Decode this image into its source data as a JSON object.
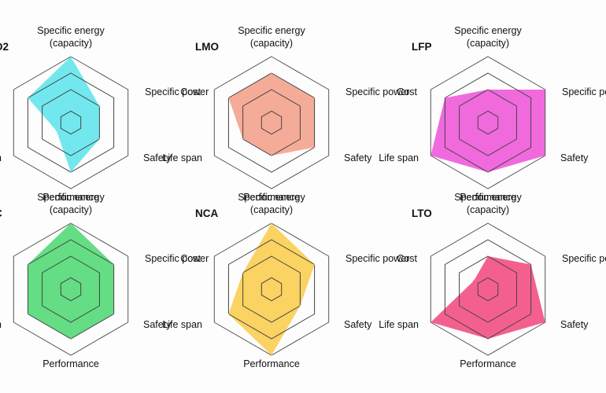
{
  "axes": [
    "Specific energy (capacity)",
    "Specific power",
    "Safety",
    "Performance",
    "Life span",
    "Cost"
  ],
  "chart_data": [
    {
      "type": "radar",
      "title": "LCO",
      "title_visible": "O2",
      "labels": {
        "energy_1": "Specific energy",
        "energy_2": "(capacity)",
        "power": "Specific power",
        "safety": "Safety",
        "performance": "Performance",
        "lifespan": "span",
        "cost": "ost"
      },
      "scale_levels": 4,
      "series": [
        {
          "values": [
            4,
            2,
            2,
            3,
            1,
            3
          ],
          "color": "#5ee5ec"
        }
      ]
    },
    {
      "type": "radar",
      "title": "LMO",
      "labels": {
        "energy_1": "Specific energy",
        "energy_2": "(capacity)",
        "power": "Specific power",
        "safety": "Safety",
        "performance": "Performance",
        "lifespan": "Life span",
        "cost": "Cost"
      },
      "scale_levels": 4,
      "series": [
        {
          "values": [
            3,
            3,
            3,
            2,
            2,
            3
          ],
          "color": "#f2a08a"
        }
      ]
    },
    {
      "type": "radar",
      "title": "LFP",
      "labels": {
        "energy_1": "Specific energy",
        "energy_2": "(capacity)",
        "power": "Specific powe",
        "safety": "Safety",
        "performance": "Performance",
        "lifespan": "Life span",
        "cost": "Cost"
      },
      "scale_levels": 4,
      "series": [
        {
          "values": [
            2,
            4,
            4,
            3,
            4,
            3
          ],
          "color": "#ee55d9"
        }
      ]
    },
    {
      "type": "radar",
      "title": "NMC",
      "title_visible": "C",
      "labels": {
        "energy_1": "Specific energy",
        "energy_2": "(capacity)",
        "power": "Specific power",
        "safety": "Safety",
        "performance": "Performance",
        "lifespan": "span",
        "cost": "ost"
      },
      "scale_levels": 4,
      "series": [
        {
          "values": [
            4,
            3,
            3,
            3,
            3,
            3
          ],
          "color": "#4ed873"
        }
      ]
    },
    {
      "type": "radar",
      "title": "NCA",
      "labels": {
        "energy_1": "Specific energy",
        "energy_2": "(capacity)",
        "power": "Specific power",
        "safety": "Safety",
        "performance": "Performance",
        "lifespan": "Life span",
        "cost": "Cost"
      },
      "scale_levels": 4,
      "series": [
        {
          "values": [
            4,
            3,
            2,
            4,
            3,
            2
          ],
          "color": "#fbcd4c"
        }
      ]
    },
    {
      "type": "radar",
      "title": "LTO",
      "labels": {
        "energy_1": "Specific energy",
        "energy_2": "(capacity)",
        "power": "Specific po",
        "safety": "Safety",
        "performance": "Performance",
        "lifespan": "Life span",
        "cost": "Cost"
      },
      "scale_levels": 4,
      "series": [
        {
          "values": [
            2,
            3,
            4,
            3,
            4,
            1
          ],
          "color": "#f34a7e"
        }
      ]
    }
  ]
}
